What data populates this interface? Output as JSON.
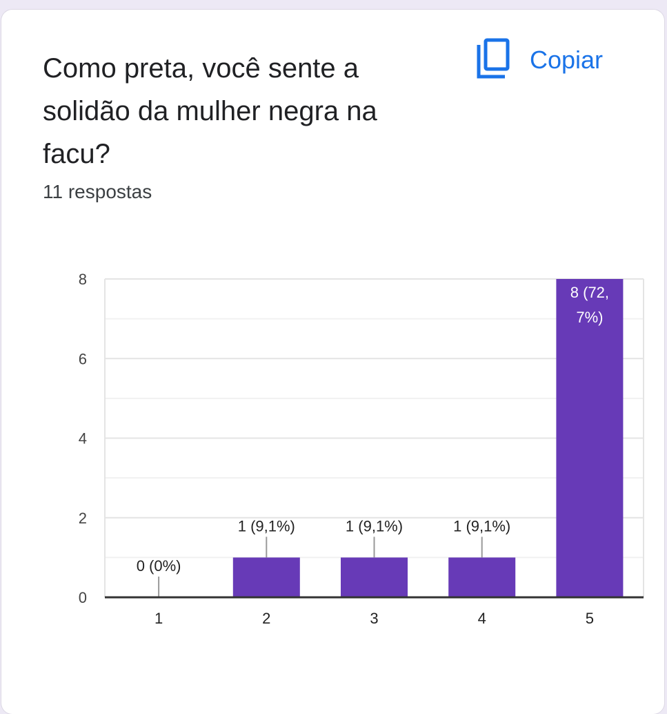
{
  "question": {
    "title_lines": [
      "Como preta, você sente a",
      "solidão da mulher negra na",
      "facu?"
    ],
    "responses": "11 respostas"
  },
  "copy_button": {
    "label": "Copiar",
    "icon": "copy-icon"
  },
  "colors": {
    "bar": "#673ab7",
    "accent": "#1a73e8",
    "grid": "#e6e6e6",
    "axis": "#333333"
  },
  "chart_data": {
    "type": "bar",
    "categories": [
      "1",
      "2",
      "3",
      "4",
      "5"
    ],
    "values": [
      0,
      1,
      1,
      1,
      8
    ],
    "data_labels": [
      "0 (0%)",
      "1 (9,1%)",
      "1 (9,1%)",
      "1 (9,1%)",
      "8 (72,\n7%)"
    ],
    "ylim": [
      0,
      8
    ],
    "yticks": [
      0,
      2,
      4,
      6,
      8
    ],
    "grid": true,
    "title": "",
    "xlabel": "",
    "ylabel": ""
  }
}
